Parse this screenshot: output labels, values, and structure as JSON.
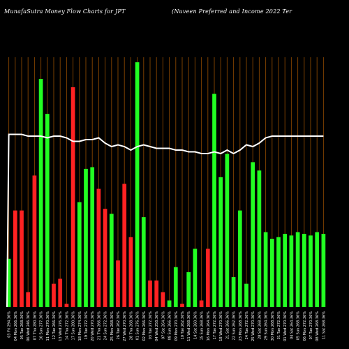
{
  "header": {
    "title_left": "MunafaSutra  Money Flow  Charts for JPT",
    "title_right": "(Nuveen  Preferred and Income   2022  Ter"
  },
  "colors": {
    "background": "#000000",
    "up": "#22ff22",
    "down": "#ff2222",
    "grid": "#7a3f00",
    "line": "#ffffff",
    "label": "#ffffff"
  },
  "chart_data": {
    "type": "bar",
    "title": "MunafaSutra  Money Flow  Charts for JPT",
    "subtitle": "(Nuveen  Preferred and Income   2022  Ter",
    "grid": true,
    "categories": [
      "03 Fri 294.36%",
      "04 Mon 266.36%",
      "05 Tue 268.36%",
      "06 Wed 246.36%",
      "07 Thu 280.36%",
      "10 Sun 277.36%",
      "11 Mon 270.36%",
      "12 Tue 266.36%",
      "13 Wed 276.36%",
      "14 Thu 272.36%",
      "17 Sun 280.36%",
      "18 Mon 274.36%",
      "19 Tue 272.36%",
      "20 Wed 270.36%",
      "21 Thu 266.36%",
      "24 Sun 272.36%",
      "25 Mon 268.36%",
      "26 Tue 262.36%",
      "27 Wed 270.36%",
      "28 Thu 268.36%",
      "01 Sun 276.36%",
      "02 Mon 266.36%",
      "03 Tue 272.36%",
      "04 Wed 258.36%",
      "07 Sat 264.36%",
      "08 Sun 266.36%",
      "09 Mon 270.36%",
      "10 Tue 262.36%",
      "11 Wed 268.36%",
      "14 Sat 260.36%",
      "15 Sun 268.36%",
      "16 Mon 264.36%",
      "17 Tue 272.36%",
      "18 Wed 270.36%",
      "21 Sat 266.36%",
      "22 Sun 262.36%",
      "23 Mon 268.36%",
      "24 Tue 272.36%",
      "25 Wed 270.36%",
      "28 Sat 268.36%",
      "29 Sun 264.36%",
      "30 Mon 268.36%",
      "31 Tue 272.36%",
      "01 Wed 270.36%",
      "04 Sat 264.36%",
      "05 Sun 268.36%",
      "06 Mon 272.36%",
      "07 Tue 270.36%",
      "08 Wed 268.36%",
      "11 Sat 268.36%"
    ],
    "series": [
      {
        "values": [
          29,
          58,
          58,
          9,
          79,
          137,
          116,
          14,
          17,
          2,
          132,
          63,
          83,
          84,
          71,
          59,
          56,
          28,
          74,
          42,
          147,
          54,
          16,
          16,
          9,
          4,
          24,
          2,
          21,
          35,
          4,
          35,
          128,
          78,
          92,
          18,
          58,
          14,
          87,
          82,
          45,
          41,
          42,
          44,
          43,
          45,
          44,
          43,
          45,
          44
        ],
        "directions": [
          "up",
          "down",
          "down",
          "down",
          "down",
          "up",
          "up",
          "down",
          "down",
          "down",
          "down",
          "up",
          "up",
          "up",
          "down",
          "down",
          "up",
          "down",
          "down",
          "down",
          "up",
          "up",
          "down",
          "down",
          "down",
          "up",
          "up",
          "down",
          "up",
          "up",
          "down",
          "down",
          "up",
          "up",
          "up",
          "up",
          "up",
          "up",
          "up",
          "up",
          "up",
          "up",
          "up",
          "up",
          "up",
          "up",
          "up",
          "up",
          "up",
          "up"
        ]
      }
    ],
    "line_values": [
      99,
      99,
      99,
      98,
      98,
      98,
      97,
      98,
      98,
      97,
      95,
      95,
      96,
      96,
      97,
      94,
      92,
      93,
      92,
      90,
      92,
      93,
      92,
      91,
      91,
      91,
      90,
      90,
      89,
      89,
      88,
      88,
      89,
      88,
      90,
      88,
      90,
      93,
      92,
      94,
      97,
      98,
      98,
      98,
      98,
      98,
      98,
      98,
      98,
      98
    ],
    "ylim": [
      0,
      150
    ]
  }
}
